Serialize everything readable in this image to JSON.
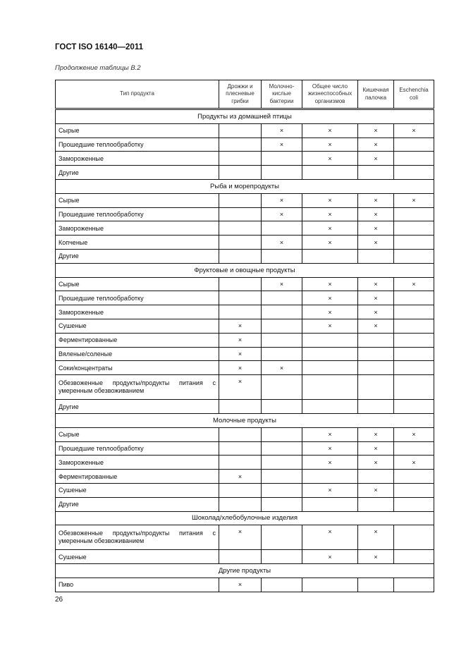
{
  "header": {
    "title": "ГОСТ ISO 16140—2011",
    "subtitle": "Продолжение таблицы В.2"
  },
  "table": {
    "columns": [
      "Тип продукта",
      "Дрожжи и плесневые грибки",
      "Молочно-кислые бактерии",
      "Общее число жизнеспособных организмов",
      "Кишечная палочка",
      "Eschenchia coli"
    ],
    "sections": [
      {
        "title": "Продукты из домашней птицы",
        "rows": [
          {
            "name": "Сырые",
            "marks": [
              "",
              "×",
              "×",
              "×",
              "×"
            ]
          },
          {
            "name": "Прошедшие теплообработку",
            "marks": [
              "",
              "×",
              "×",
              "×",
              ""
            ]
          },
          {
            "name": "Замороженные",
            "marks": [
              "",
              "",
              "×",
              "×",
              ""
            ]
          },
          {
            "name": "Другие",
            "marks": [
              "",
              "",
              "",
              "",
              ""
            ]
          }
        ]
      },
      {
        "title": "Рыба и морепродукты",
        "rows": [
          {
            "name": "Сырые",
            "marks": [
              "",
              "×",
              "×",
              "×",
              "×"
            ]
          },
          {
            "name": "Прошедшие теплообработку",
            "marks": [
              "",
              "×",
              "×",
              "×",
              ""
            ]
          },
          {
            "name": "Замороженные",
            "marks": [
              "",
              "",
              "×",
              "×",
              ""
            ]
          },
          {
            "name": "Копченые",
            "marks": [
              "",
              "×",
              "×",
              "×",
              ""
            ]
          },
          {
            "name": "Другие",
            "marks": [
              "",
              "",
              "",
              "",
              ""
            ]
          }
        ]
      },
      {
        "title": "Фруктовые и овощные продукты",
        "rows": [
          {
            "name": "Сырые",
            "marks": [
              "",
              "×",
              "×",
              "×",
              "×"
            ]
          },
          {
            "name": "Прошедшие теплообработку",
            "marks": [
              "",
              "",
              "×",
              "×",
              ""
            ]
          },
          {
            "name": "Замороженные",
            "marks": [
              "",
              "",
              "×",
              "×",
              ""
            ]
          },
          {
            "name": "Сушеные",
            "marks": [
              "×",
              "",
              "×",
              "×",
              ""
            ]
          },
          {
            "name": "Ферментированные",
            "marks": [
              "×",
              "",
              "",
              "",
              ""
            ]
          },
          {
            "name": "Вяленые/соленые",
            "marks": [
              "×",
              "",
              "",
              "",
              ""
            ]
          },
          {
            "name": "Соки/концентраты",
            "marks": [
              "×",
              "×",
              "",
              "",
              ""
            ]
          },
          {
            "name": "Обезвоженные продукты/продукты питания с умеренным обезвоживанием",
            "tall": true,
            "marks": [
              "×",
              "",
              "",
              "",
              ""
            ]
          },
          {
            "name": "Другие",
            "marks": [
              "",
              "",
              "",
              "",
              ""
            ]
          }
        ]
      },
      {
        "title": "Молочные продукты",
        "rows": [
          {
            "name": "Сырые",
            "marks": [
              "",
              "",
              "×",
              "×",
              "×"
            ]
          },
          {
            "name": "Прошедшие теплообработку",
            "marks": [
              "",
              "",
              "×",
              "×",
              ""
            ]
          },
          {
            "name": "Замороженные",
            "marks": [
              "",
              "",
              "×",
              "×",
              "×"
            ]
          },
          {
            "name": "Ферментированные",
            "marks": [
              "×",
              "",
              "",
              "",
              ""
            ]
          },
          {
            "name": "Сушеные",
            "marks": [
              "",
              "",
              "×",
              "×",
              ""
            ]
          },
          {
            "name": "Другие",
            "marks": [
              "",
              "",
              "",
              "",
              ""
            ]
          }
        ]
      },
      {
        "title": "Шоколад/хлебобулочные изделия",
        "rows": [
          {
            "name": "Обезвоженные продукты/продукты питания с умеренным обезвоживанием",
            "tall": true,
            "marks": [
              "×",
              "",
              "×",
              "×",
              ""
            ]
          },
          {
            "name": "Сушеные",
            "marks": [
              "",
              "",
              "×",
              "×",
              ""
            ]
          }
        ]
      },
      {
        "title": "Другие продукты",
        "rows": [
          {
            "name": "Пиво",
            "marks": [
              "×",
              "",
              "",
              "",
              ""
            ]
          }
        ]
      }
    ]
  },
  "footer": {
    "page_number": "26"
  }
}
